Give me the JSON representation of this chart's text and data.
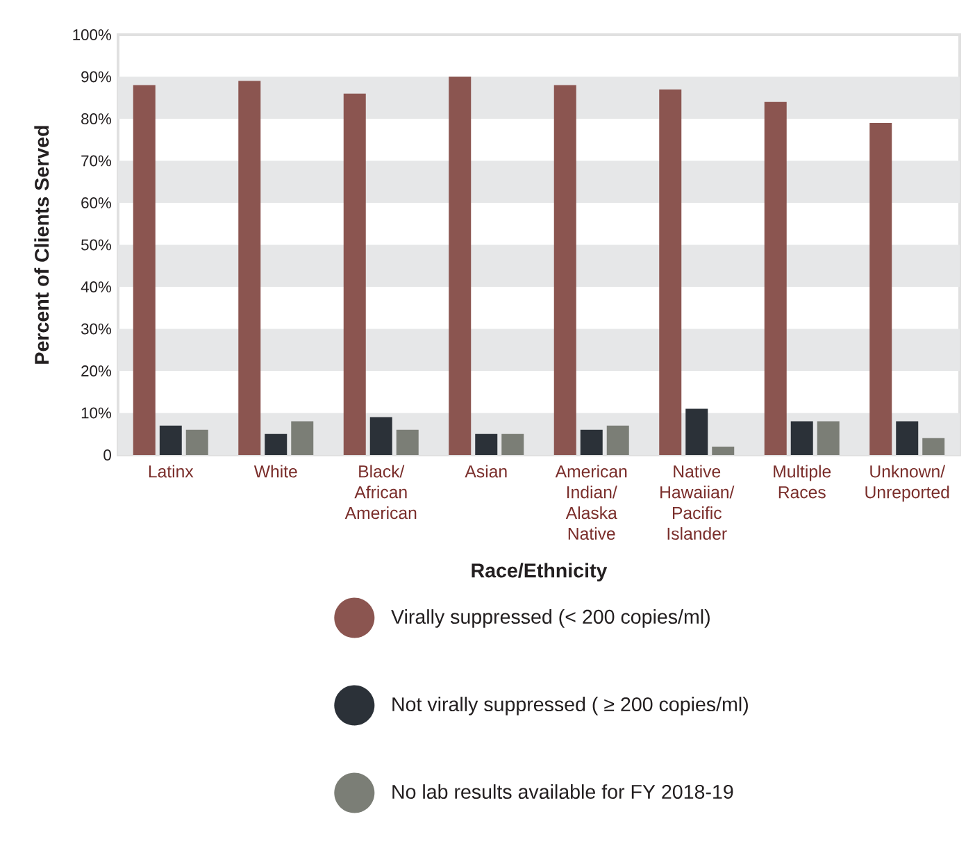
{
  "chart_data": {
    "type": "bar",
    "xlabel": "Race/Ethnicity",
    "ylabel": "Percent of Clients Served",
    "categories": [
      "Latinx",
      "White",
      "Black/ African American",
      "Asian",
      "American Indian/ Alaska Native",
      "Native Hawaiian/ Pacific Islander",
      "Multiple Races",
      "Unknown/ Unreported"
    ],
    "series": [
      {
        "name": "Virally suppressed (< 200 copies/ml)",
        "color": "#8b5550",
        "values": [
          88,
          89,
          86,
          90,
          88,
          87,
          84,
          79
        ]
      },
      {
        "name": "Not virally suppressed ( ≥ 200 copies/ml)",
        "color": "#2b3138",
        "values": [
          7,
          5,
          9,
          5,
          6,
          11,
          8,
          8
        ]
      },
      {
        "name": "No lab results available for FY 2018-19",
        "color": "#7b7e76",
        "values": [
          6,
          8,
          6,
          5,
          7,
          2,
          8,
          4
        ]
      }
    ],
    "ylim": [
      0,
      100
    ],
    "yticks": [
      {
        "value": 0,
        "label": "0"
      },
      {
        "value": 10,
        "label": "10%"
      },
      {
        "value": 20,
        "label": "20%"
      },
      {
        "value": 30,
        "label": "30%"
      },
      {
        "value": 40,
        "label": "40%"
      },
      {
        "value": 50,
        "label": "50%"
      },
      {
        "value": 60,
        "label": "60%"
      },
      {
        "value": 70,
        "label": "70%"
      },
      {
        "value": 80,
        "label": "80%"
      },
      {
        "value": 90,
        "label": "90%"
      },
      {
        "value": 100,
        "label": "100%"
      }
    ],
    "bands": [
      {
        "axis": "y",
        "from": 0,
        "to": 10,
        "color": "#e6e7e8"
      },
      {
        "axis": "y",
        "from": 20,
        "to": 30,
        "color": "#e6e7e8"
      },
      {
        "axis": "y",
        "from": 40,
        "to": 50,
        "color": "#e6e7e8"
      },
      {
        "axis": "y",
        "from": 60,
        "to": 70,
        "color": "#e6e7e8"
      },
      {
        "axis": "y",
        "from": 80,
        "to": 90,
        "color": "#e6e7e8"
      }
    ],
    "legend": "bottom"
  }
}
